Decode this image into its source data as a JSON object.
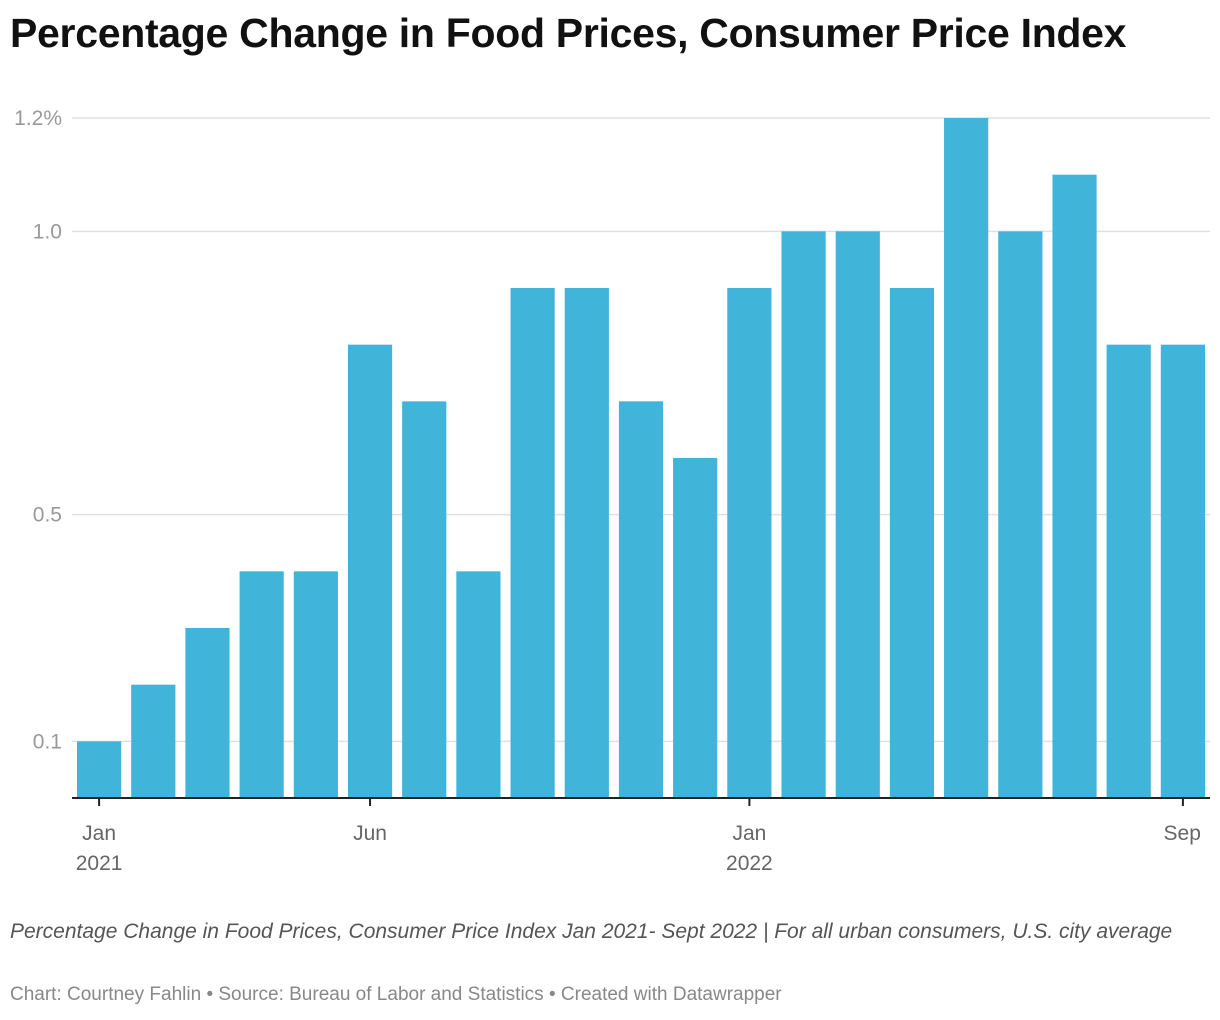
{
  "header": {
    "title": "Percentage Change in Food Prices, Consumer Price Index"
  },
  "chart_data": {
    "type": "bar",
    "title": "Percentage Change in Food Prices, Consumer Price Index",
    "xlabel": "",
    "ylabel": "",
    "categories": [
      "Jan 2021",
      "Feb 2021",
      "Mar 2021",
      "Apr 2021",
      "May 2021",
      "Jun 2021",
      "Jul 2021",
      "Aug 2021",
      "Sep 2021",
      "Oct 2021",
      "Nov 2021",
      "Dec 2021",
      "Jan 2022",
      "Feb 2022",
      "Mar 2022",
      "Apr 2022",
      "May 2022",
      "Jun 2022",
      "Jul 2022",
      "Aug 2022",
      "Sep 2022"
    ],
    "values": [
      0.1,
      0.2,
      0.3,
      0.4,
      0.4,
      0.8,
      0.7,
      0.4,
      0.9,
      0.9,
      0.7,
      0.6,
      0.9,
      1.0,
      1.0,
      0.9,
      1.2,
      1.0,
      1.1,
      0.8,
      0.8
    ],
    "ylim": [
      0,
      1.2
    ],
    "y_ticks": [
      {
        "value": 0.1,
        "label": "0.1"
      },
      {
        "value": 0.5,
        "label": "0.5"
      },
      {
        "value": 1.0,
        "label": "1.0"
      },
      {
        "value": 1.2,
        "label": "1.2%"
      }
    ],
    "x_ticks": [
      {
        "index": 0,
        "line1": "Jan",
        "line2": "2021"
      },
      {
        "index": 5,
        "line1": "Jun",
        "line2": ""
      },
      {
        "index": 12,
        "line1": "Jan",
        "line2": "2022"
      },
      {
        "index": 20,
        "line1": "Sep",
        "line2": ""
      }
    ],
    "bar_color": "#41b4d9",
    "grid": true,
    "legend": "none"
  },
  "footer": {
    "note": "Percentage Change in Food Prices, Consumer Price Index Jan 2021- Sept 2022 | For all urban consumers, U.S. city average",
    "credit_chart": "Chart: Courtney Fahlin",
    "credit_source": "Source: Bureau of Labor and Statistics",
    "credit_tool": "Created with Datawrapper",
    "separator": "•"
  }
}
